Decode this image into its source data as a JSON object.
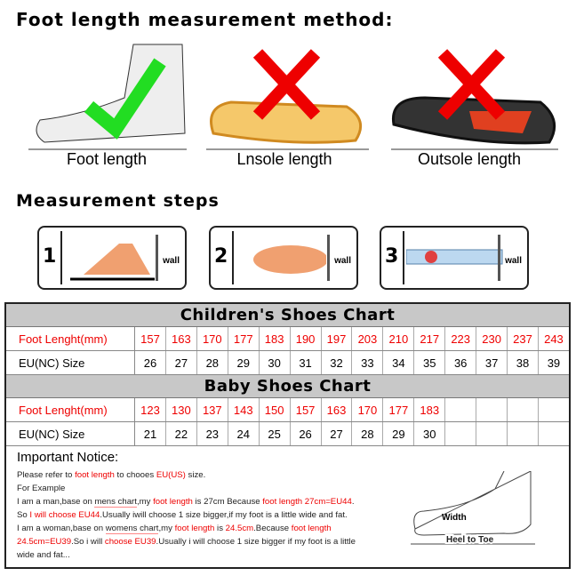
{
  "title": "Foot length measurement method:",
  "methods": [
    {
      "label": "Foot length",
      "mark": "check"
    },
    {
      "label": "Lnsole length",
      "mark": "cross"
    },
    {
      "label": "Outsole length",
      "mark": "cross"
    }
  ],
  "steps_title": "Measurement steps",
  "steps": [
    {
      "num": "1",
      "wall": "wall"
    },
    {
      "num": "2",
      "wall": "wall"
    },
    {
      "num": "3",
      "wall": "wall"
    }
  ],
  "children": {
    "title": "Children's Shoes Chart",
    "len_label": "Foot Lenght(mm)",
    "size_label": "EU(NC) Size",
    "lengths": [
      "157",
      "163",
      "170",
      "177",
      "183",
      "190",
      "197",
      "203",
      "210",
      "217",
      "223",
      "230",
      "237",
      "243"
    ],
    "sizes": [
      "26",
      "27",
      "28",
      "29",
      "30",
      "31",
      "32",
      "33",
      "34",
      "35",
      "36",
      "37",
      "38",
      "39"
    ]
  },
  "baby": {
    "title": "Baby Shoes Chart",
    "len_label": "Foot Lenght(mm)",
    "size_label": "EU(NC) Size",
    "lengths": [
      "123",
      "130",
      "137",
      "143",
      "150",
      "157",
      "163",
      "170",
      "177",
      "183",
      "",
      "",
      "",
      ""
    ],
    "sizes": [
      "21",
      "22",
      "23",
      "24",
      "25",
      "26",
      "27",
      "28",
      "29",
      "30",
      "",
      "",
      "",
      ""
    ]
  },
  "notice": {
    "title": "Important Notice:",
    "lines": [
      [
        {
          "t": "Please refer to "
        },
        {
          "t": "foot length",
          "r": 1
        },
        {
          "t": " to chooes "
        },
        {
          "t": "EU(US)",
          "r": 1
        },
        {
          "t": " size."
        }
      ],
      [
        {
          "t": "For Example"
        }
      ],
      [
        {
          "t": "I am a man,base on "
        },
        {
          "t": "mens chart",
          "u": 1
        },
        {
          "t": ",my "
        },
        {
          "t": "foot length",
          "r": 1
        },
        {
          "t": " is 27cm Because "
        },
        {
          "t": "foot length 27cm=EU44",
          "r": 1
        },
        {
          "t": "."
        }
      ],
      [
        {
          "t": "So "
        },
        {
          "t": "I will choose EU44",
          "r": 1
        },
        {
          "t": ".Usually iwill choose 1 size bigger,if my foot is a little wide and fat."
        }
      ],
      [
        {
          "t": "I am a woman,base on "
        },
        {
          "t": "womens chart",
          "u": 1
        },
        {
          "t": ",my "
        },
        {
          "t": "foot length",
          "r": 1
        },
        {
          "t": " is "
        },
        {
          "t": "24.5cm",
          "r": 1
        },
        {
          "t": ".Because "
        },
        {
          "t": "foot length",
          "r": 1
        }
      ],
      [
        {
          "t": "24.5cm=EU39",
          "r": 1
        },
        {
          "t": ".So i will "
        },
        {
          "t": "choose EU39",
          "r": 1
        },
        {
          "t": ".Usually i will choose 1 size bigger if my foot is a little"
        }
      ],
      [
        {
          "t": "wide and fat..."
        }
      ]
    ]
  },
  "diagram": {
    "width_label": "Width",
    "heel_label": "Heel to Toe"
  },
  "colors": {
    "red": "#ee0000",
    "green": "#22dd22",
    "band": "#c8c8c8"
  }
}
